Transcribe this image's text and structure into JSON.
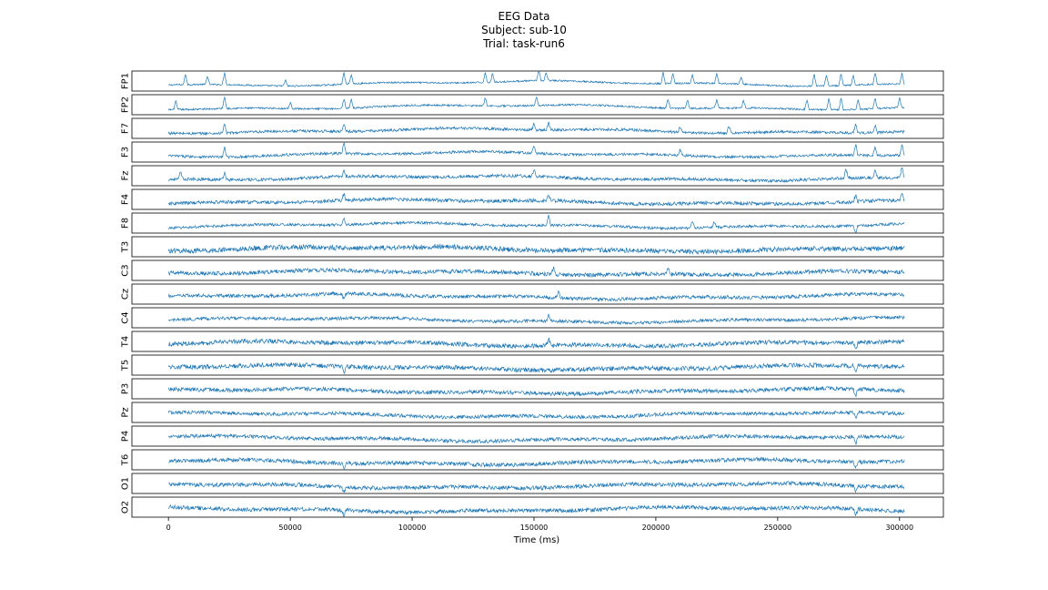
{
  "chart_data": {
    "type": "line",
    "title": "EEG Data",
    "subtitle_lines": [
      "Subject: sub-10",
      "Trial: task-run6"
    ],
    "xlabel": "Time (ms)",
    "xlim": [
      -15000,
      318000
    ],
    "xticks": [
      0,
      50000,
      100000,
      150000,
      200000,
      250000,
      300000
    ],
    "xtick_labels": [
      "0",
      "50000",
      "100000",
      "150000",
      "200000",
      "250000",
      "300000"
    ],
    "x_start": 0,
    "x_end": 302000,
    "line_color": "#1f77b4",
    "grid": false,
    "series": [
      {
        "name": "FP1",
        "amp": 0.18,
        "spikes": [
          [
            7000,
            0.9
          ],
          [
            16000,
            0.7
          ],
          [
            23000,
            1.0
          ],
          [
            48000,
            0.5
          ],
          [
            72000,
            1.0
          ],
          [
            75000,
            0.8
          ],
          [
            130000,
            0.8
          ],
          [
            133000,
            0.7
          ],
          [
            152000,
            0.9
          ],
          [
            155000,
            0.7
          ],
          [
            203000,
            0.9
          ],
          [
            207000,
            0.8
          ],
          [
            215000,
            0.7
          ],
          [
            225000,
            0.8
          ],
          [
            235000,
            0.6
          ],
          [
            265000,
            1.0
          ],
          [
            270000,
            0.9
          ],
          [
            276000,
            1.0
          ],
          [
            281000,
            0.8
          ],
          [
            290000,
            1.0
          ],
          [
            301000,
            0.9
          ]
        ]
      },
      {
        "name": "FP2",
        "amp": 0.2,
        "spikes": [
          [
            3000,
            0.7
          ],
          [
            23000,
            1.0
          ],
          [
            50000,
            0.5
          ],
          [
            72000,
            0.8
          ],
          [
            75000,
            0.7
          ],
          [
            130000,
            0.7
          ],
          [
            151000,
            0.7
          ],
          [
            205000,
            0.8
          ],
          [
            213000,
            0.7
          ],
          [
            225000,
            0.7
          ],
          [
            236000,
            0.6
          ],
          [
            262000,
            0.8
          ],
          [
            271000,
            1.0
          ],
          [
            276000,
            1.0
          ],
          [
            283000,
            0.8
          ],
          [
            290000,
            0.9
          ],
          [
            300000,
            0.8
          ]
        ]
      },
      {
        "name": "F7",
        "amp": 0.3,
        "spikes": [
          [
            23000,
            0.8
          ],
          [
            72000,
            0.7
          ],
          [
            150000,
            0.5
          ],
          [
            156000,
            0.6
          ],
          [
            210000,
            0.5
          ],
          [
            230000,
            0.6
          ],
          [
            282000,
            0.8
          ],
          [
            290000,
            0.6
          ]
        ]
      },
      {
        "name": "F3",
        "amp": 0.3,
        "spikes": [
          [
            23000,
            0.8
          ],
          [
            72000,
            0.9
          ],
          [
            150000,
            0.6
          ],
          [
            210000,
            0.5
          ],
          [
            282000,
            0.9
          ],
          [
            290000,
            0.8
          ],
          [
            301000,
            0.9
          ]
        ]
      },
      {
        "name": "Fz",
        "amp": 0.35,
        "spikes": [
          [
            5000,
            0.6
          ],
          [
            23000,
            0.6
          ],
          [
            72000,
            0.5
          ],
          [
            150000,
            0.6
          ],
          [
            278000,
            0.8
          ],
          [
            290000,
            0.7
          ],
          [
            301000,
            0.9
          ]
        ]
      },
      {
        "name": "F4",
        "amp": 0.4,
        "spikes": [
          [
            72000,
            0.6
          ],
          [
            156000,
            0.5
          ],
          [
            282000,
            0.6
          ],
          [
            301000,
            0.6
          ]
        ]
      },
      {
        "name": "F8",
        "amp": 0.3,
        "spikes": [
          [
            72000,
            0.6
          ],
          [
            156000,
            0.8
          ],
          [
            215000,
            0.6
          ],
          [
            224000,
            0.5
          ],
          [
            282000,
            -0.8
          ]
        ]
      },
      {
        "name": "T3",
        "amp": 0.55,
        "spikes": []
      },
      {
        "name": "C3",
        "amp": 0.45,
        "spikes": [
          [
            158000,
            0.6
          ],
          [
            205000,
            0.5
          ]
        ]
      },
      {
        "name": "Cz",
        "amp": 0.4,
        "spikes": [
          [
            72000,
            -0.5
          ],
          [
            160000,
            0.5
          ]
        ]
      },
      {
        "name": "C4",
        "amp": 0.35,
        "spikes": [
          [
            156000,
            0.5
          ]
        ]
      },
      {
        "name": "T4",
        "amp": 0.5,
        "spikes": [
          [
            156000,
            0.6
          ],
          [
            282000,
            -0.7
          ]
        ]
      },
      {
        "name": "T5",
        "amp": 0.5,
        "spikes": [
          [
            72000,
            -0.5
          ],
          [
            282000,
            -0.6
          ]
        ]
      },
      {
        "name": "P3",
        "amp": 0.45,
        "spikes": [
          [
            282000,
            -0.7
          ]
        ]
      },
      {
        "name": "Pz",
        "amp": 0.4,
        "spikes": [
          [
            282000,
            -0.5
          ]
        ]
      },
      {
        "name": "P4",
        "amp": 0.4,
        "spikes": [
          [
            282000,
            -0.6
          ]
        ]
      },
      {
        "name": "T6",
        "amp": 0.45,
        "spikes": [
          [
            72000,
            -0.5
          ],
          [
            282000,
            -0.6
          ]
        ]
      },
      {
        "name": "O1",
        "amp": 0.45,
        "spikes": [
          [
            72000,
            -0.5
          ],
          [
            282000,
            -0.6
          ]
        ]
      },
      {
        "name": "O2",
        "amp": 0.45,
        "spikes": [
          [
            72000,
            -0.5
          ],
          [
            282000,
            -0.6
          ]
        ]
      }
    ]
  }
}
